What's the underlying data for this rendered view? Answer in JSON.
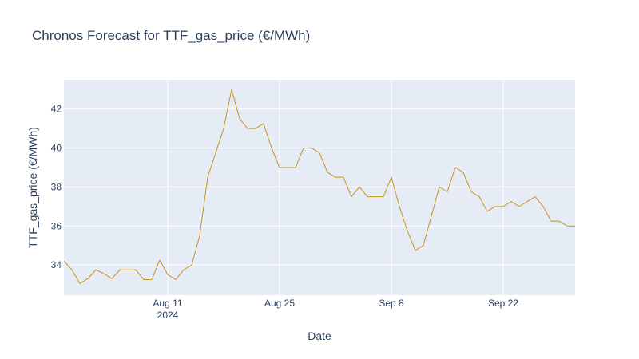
{
  "chart_data": {
    "type": "line",
    "title": "Chronos Forecast for TTF_gas_price (€/MWh)",
    "xlabel": "Date",
    "ylabel": "TTF_gas_price (€/MWh)",
    "grid": true,
    "xlim": [
      "2024-07-29",
      "2024-10-01"
    ],
    "ylim": [
      32.45,
      43.5
    ],
    "x_ticks": [
      {
        "date": "2024-08-11",
        "label": "Aug 11",
        "sublabel": "2024"
      },
      {
        "date": "2024-08-25",
        "label": "Aug 25",
        "sublabel": ""
      },
      {
        "date": "2024-09-08",
        "label": "Sep 8",
        "sublabel": ""
      },
      {
        "date": "2024-09-22",
        "label": "Sep 22",
        "sublabel": ""
      }
    ],
    "y_ticks": [
      34,
      36,
      38,
      40,
      42
    ],
    "colors": {
      "line": "#c8941e",
      "plot_bg": "#e5ecf6",
      "grid": "#ffffff",
      "text": "#2a3f5f"
    },
    "series": [
      {
        "x": [
          "2024-07-29",
          "2024-07-30",
          "2024-07-31",
          "2024-08-01",
          "2024-08-02",
          "2024-08-03",
          "2024-08-04",
          "2024-08-05",
          "2024-08-06",
          "2024-08-07",
          "2024-08-08",
          "2024-08-09",
          "2024-08-10",
          "2024-08-11",
          "2024-08-12",
          "2024-08-13",
          "2024-08-14",
          "2024-08-15",
          "2024-08-16",
          "2024-08-17",
          "2024-08-18",
          "2024-08-19",
          "2024-08-20",
          "2024-08-21",
          "2024-08-22",
          "2024-08-23",
          "2024-08-24",
          "2024-08-25",
          "2024-08-26",
          "2024-08-27",
          "2024-08-28",
          "2024-08-29",
          "2024-08-30",
          "2024-08-31",
          "2024-09-01",
          "2024-09-02",
          "2024-09-03",
          "2024-09-04",
          "2024-09-05",
          "2024-09-06",
          "2024-09-07",
          "2024-09-08",
          "2024-09-09",
          "2024-09-10",
          "2024-09-11",
          "2024-09-12",
          "2024-09-13",
          "2024-09-14",
          "2024-09-15",
          "2024-09-16",
          "2024-09-17",
          "2024-09-18",
          "2024-09-19",
          "2024-09-20",
          "2024-09-21",
          "2024-09-22",
          "2024-09-23",
          "2024-09-24",
          "2024-09-25",
          "2024-09-26",
          "2024-09-27",
          "2024-09-28",
          "2024-09-29",
          "2024-09-30",
          "2024-10-01"
        ],
        "values": [
          34.2,
          33.75,
          33.05,
          33.3,
          33.75,
          33.55,
          33.3,
          33.75,
          33.75,
          33.75,
          33.25,
          33.25,
          34.25,
          33.5,
          33.25,
          33.75,
          34.0,
          35.5,
          38.5,
          39.75,
          41.0,
          43.0,
          41.5,
          41.0,
          41.0,
          41.25,
          40.0,
          39.0,
          39.0,
          39.0,
          40.0,
          40.0,
          39.75,
          38.75,
          38.5,
          38.5,
          37.5,
          38.0,
          37.5,
          37.5,
          37.5,
          38.5,
          37.0,
          35.75,
          34.75,
          35.0,
          36.5,
          38.0,
          37.75,
          39.0,
          38.75,
          37.75,
          37.5,
          36.75,
          37.0,
          37.0,
          37.25,
          37.0,
          37.25,
          37.5,
          37.0,
          36.25,
          36.25,
          36.0,
          36.0
        ]
      }
    ]
  }
}
